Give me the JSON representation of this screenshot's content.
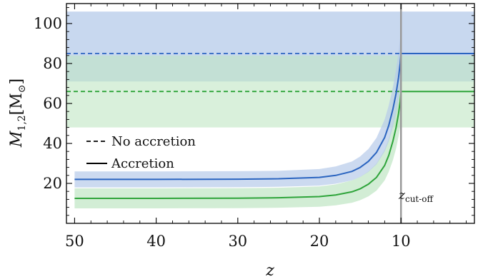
{
  "chart_data": {
    "type": "line",
    "xlabel": "z",
    "ylabel_main": "M",
    "ylabel_sub": "1,2",
    "ylabel_unit_open": "[M",
    "ylabel_unit_sub": "⊙",
    "ylabel_unit_close": "]",
    "xlim": [
      51,
      1
    ],
    "ylim": [
      0,
      110
    ],
    "x_ticks": [
      50,
      40,
      30,
      20,
      10
    ],
    "y_ticks": [
      20,
      40,
      60,
      80,
      100
    ],
    "x_minor_step": 2,
    "y_minor_step": 4,
    "z_cutoff": 10,
    "cutoff_label_main": "z",
    "cutoff_label_sub": "cut-off",
    "colors": {
      "blue_line": "#2a64c0",
      "blue_band": "#b6cbe9",
      "green_line": "#2ea43a",
      "green_band": "#bfe6c3",
      "cutoff_line": "#999999"
    },
    "series": [
      {
        "kind": "accretion",
        "color": "blue",
        "z": [
          50,
          40,
          30,
          25,
          20,
          18,
          16,
          15,
          14,
          13,
          12,
          11.5,
          11,
          10.6,
          10.3,
          10.1,
          10
        ],
        "mass": [
          22.0,
          22.0,
          22.1,
          22.3,
          23.0,
          24.0,
          26.0,
          28.0,
          31.0,
          35.5,
          43.0,
          49.0,
          57.0,
          65.0,
          73.0,
          80.0,
          85.0
        ],
        "band_lower": [
          18.0,
          18.0,
          18.1,
          18.3,
          18.9,
          19.8,
          21.5,
          23.2,
          25.7,
          29.5,
          36.0,
          41.0,
          48.0,
          55.0,
          62.0,
          68.0,
          72.0
        ],
        "band_upper": [
          26.0,
          26.0,
          26.1,
          26.3,
          27.2,
          28.5,
          31.0,
          33.5,
          37.2,
          42.8,
          52.0,
          59.0,
          68.0,
          77.0,
          86.0,
          93.0,
          97.0
        ]
      },
      {
        "kind": "accretion",
        "color": "green",
        "z": [
          50,
          40,
          30,
          25,
          20,
          18,
          16,
          15,
          14,
          13,
          12,
          11.5,
          11,
          10.6,
          10.3,
          10.1,
          10
        ],
        "mass": [
          12.5,
          12.5,
          12.6,
          12.8,
          13.4,
          14.2,
          15.8,
          17.3,
          19.6,
          23.0,
          29.0,
          34.0,
          41.0,
          48.0,
          55.0,
          61.0,
          66.0
        ],
        "band_lower": [
          7.5,
          7.5,
          7.6,
          7.8,
          8.3,
          9.0,
          10.3,
          11.6,
          13.5,
          16.4,
          21.5,
          25.8,
          31.5,
          37.5,
          43.5,
          48.5,
          53.0
        ],
        "band_upper": [
          17.5,
          17.5,
          17.6,
          17.8,
          18.5,
          19.5,
          21.5,
          23.3,
          26.0,
          30.0,
          37.0,
          42.5,
          50.5,
          58.5,
          66.5,
          73.5,
          79.0
        ]
      },
      {
        "kind": "no_accretion",
        "color": "blue",
        "value": 85,
        "band": [
          71,
          106
        ]
      },
      {
        "kind": "no_accretion",
        "color": "green",
        "value": 66,
        "band": [
          48,
          84
        ]
      }
    ],
    "legend": {
      "placement": "center-left",
      "entries": [
        {
          "label": "No accretion",
          "style": "dashed"
        },
        {
          "label": "Accretion",
          "style": "solid"
        }
      ]
    }
  }
}
